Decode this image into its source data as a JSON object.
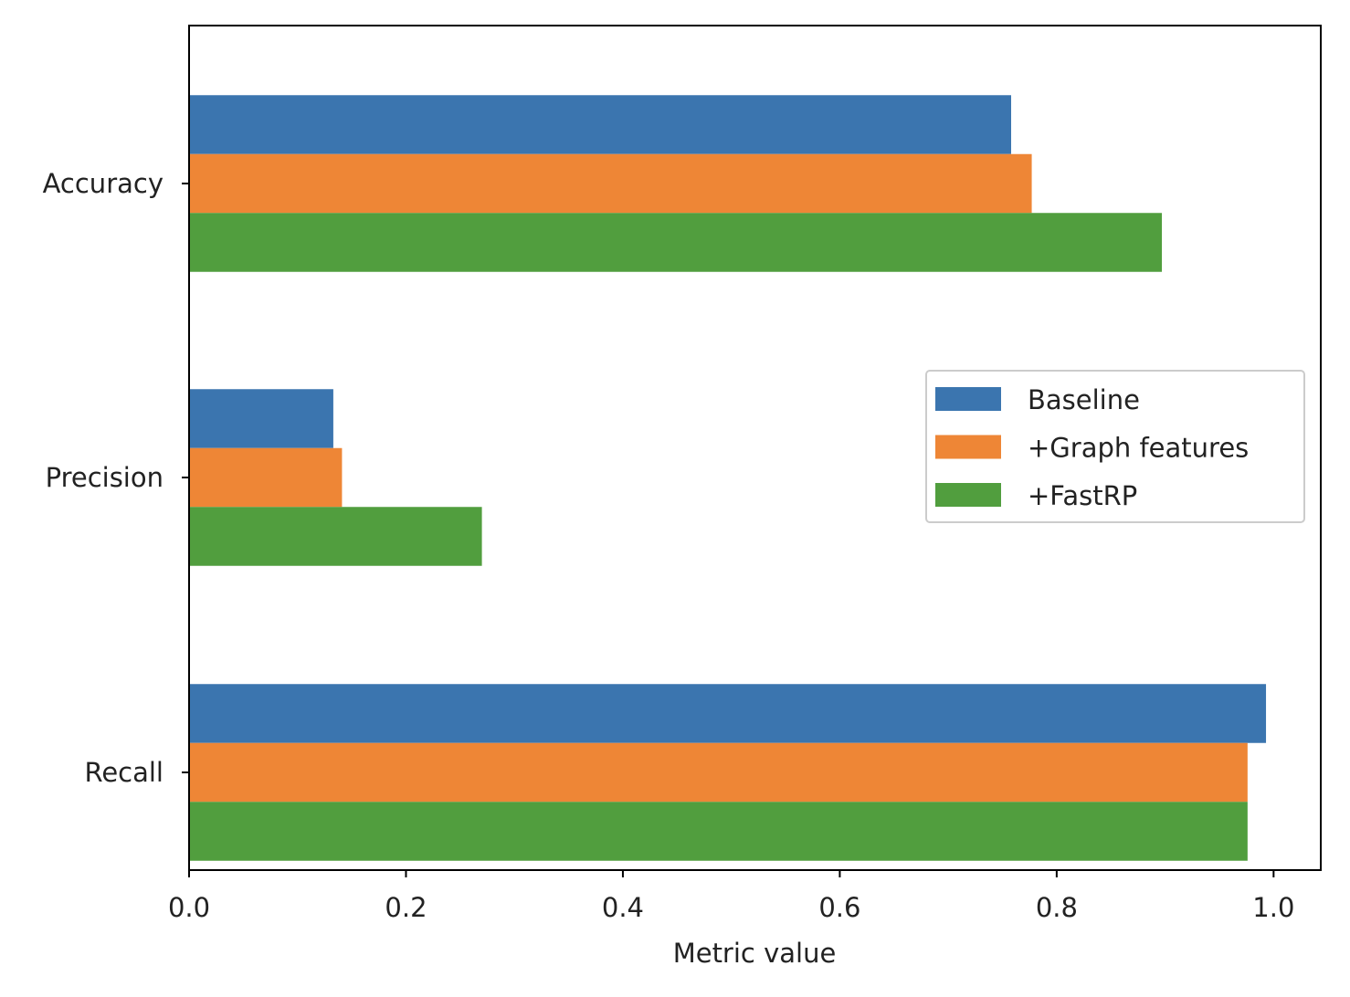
{
  "chart_data": {
    "type": "bar",
    "orientation": "horizontal",
    "categories": [
      "Accuracy",
      "Precision",
      "Recall"
    ],
    "series": [
      {
        "name": "Baseline",
        "color": "#3b75af",
        "values": [
          0.758,
          0.133,
          0.993
        ]
      },
      {
        "name": "+Graph features",
        "color": "#ee8636",
        "values": [
          0.777,
          0.141,
          0.976
        ]
      },
      {
        "name": "+FastRP",
        "color": "#519e3e",
        "values": [
          0.897,
          0.27,
          0.976
        ]
      }
    ],
    "title": "",
    "xlabel": "Metric value",
    "ylabel": "",
    "xlim": [
      0,
      1.0435
    ],
    "xticks": [
      "0.0",
      "0.2",
      "0.4",
      "0.6",
      "0.8",
      "1.0"
    ],
    "grid": false,
    "legend_position": "center-right"
  }
}
